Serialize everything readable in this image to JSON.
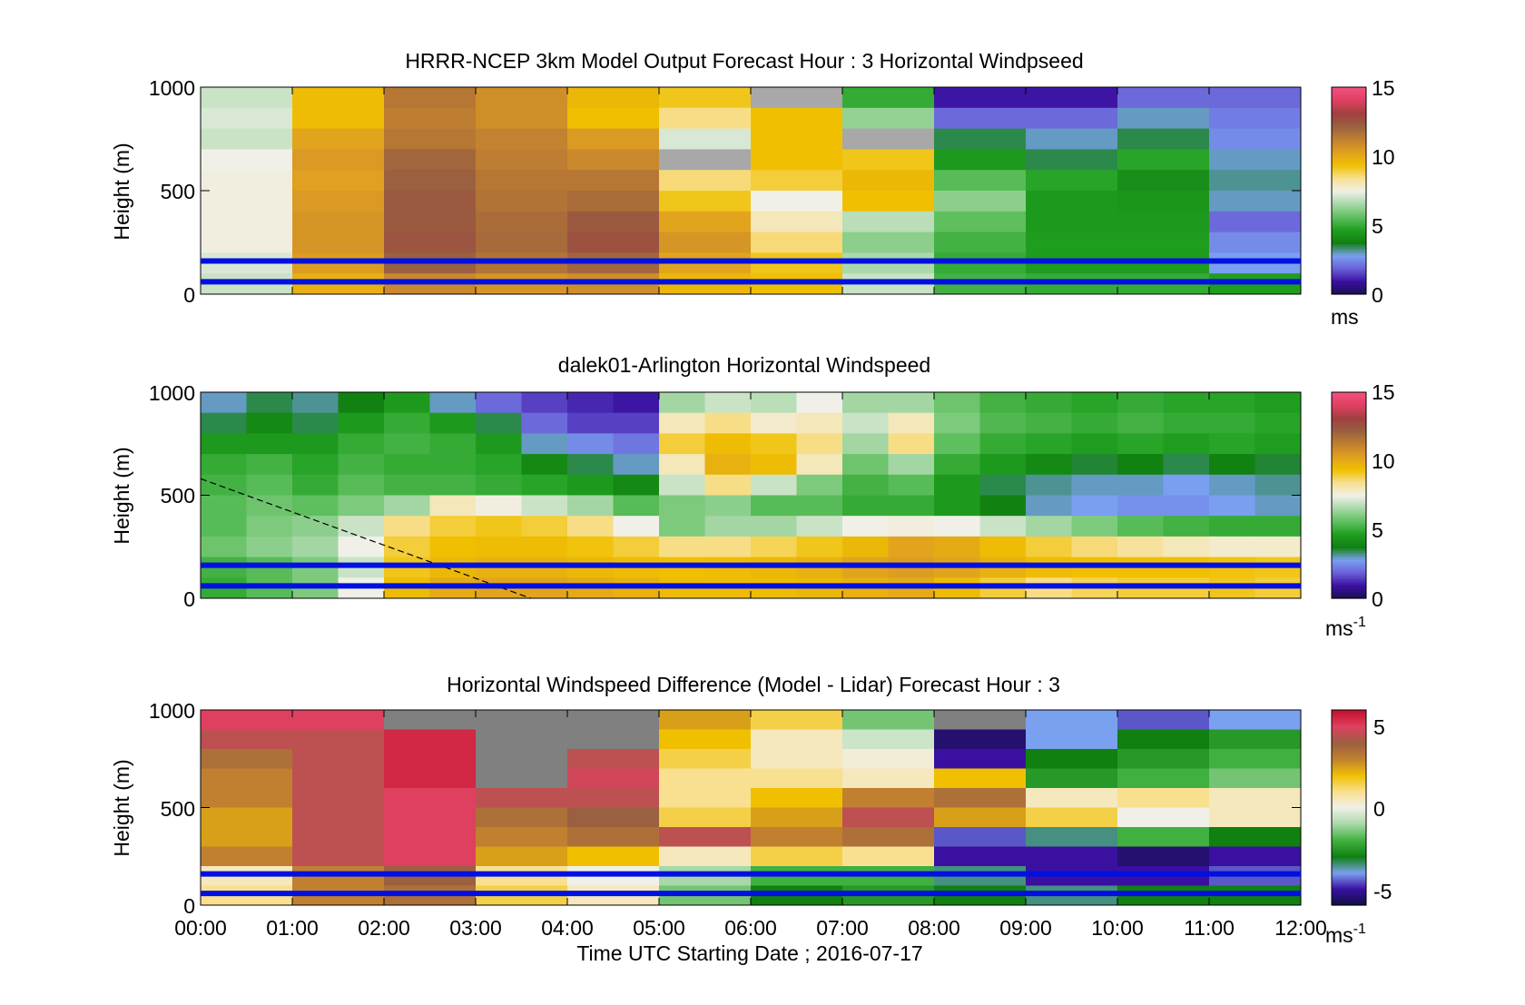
{
  "colormaps": {
    "speed": [
      "#1a1050",
      "#3a10a0",
      "#6a60d8",
      "#7aa0f0",
      "#108010",
      "#20a020",
      "#60c060",
      "#a8d8a8",
      "#f0f0e8",
      "#f8e090",
      "#f0c000",
      "#e0a020",
      "#c08030",
      "#9a6040",
      "#a04040",
      "#e04060",
      "#f05080"
    ],
    "diff": [
      "#101040",
      "#3a10a0",
      "#7aa0f0",
      "#108010",
      "#40b040",
      "#a8d8a8",
      "#f0f0e8",
      "#f8e090",
      "#f0c000",
      "#c08030",
      "#9a6040",
      "#e04060",
      "#c0102a"
    ]
  },
  "reference_lines": {
    "heights": [
      160,
      60
    ],
    "color": "#0010e0"
  },
  "time_ticks": [
    "00:00",
    "01:00",
    "02:00",
    "03:00",
    "04:00",
    "05:00",
    "06:00",
    "07:00",
    "08:00",
    "09:00",
    "10:00",
    "11:00",
    "12:00"
  ],
  "xlabel": "Time UTC  Starting Date ; 2016-07-17",
  "chart_data": [
    {
      "id": "model",
      "type": "heatmap",
      "title": "HRRR-NCEP 3km Model Output   Forecast Hour : 3 Horizontal Windpseed",
      "ylabel": "Height (m)",
      "ylim": [
        0,
        1000
      ],
      "yticks": [
        "0",
        "500",
        "1000"
      ],
      "clim": [
        0,
        15
      ],
      "colormap": "speed",
      "colorbar": {
        "ticks": [
          "0",
          "5",
          "10",
          "15"
        ],
        "label": "ms",
        "label_sup": ""
      },
      "x": [
        0,
        1,
        2,
        3,
        4,
        5,
        6,
        7,
        8,
        9,
        10,
        11
      ],
      "layer_tops": [
        1000,
        900,
        800,
        700,
        600,
        500,
        400,
        300,
        200,
        100
      ],
      "values": [
        [
          7.0,
          9.5,
          11.5,
          10.8,
          9.6,
          9.2,
          0,
          5.0,
          1.0,
          1.0,
          2.0,
          2.0
        ],
        [
          7.2,
          9.5,
          11.3,
          10.8,
          9.4,
          8.5,
          9.4,
          6.3,
          2.0,
          2.0,
          3.0,
          2.3
        ],
        [
          7.0,
          10.2,
          11.5,
          11.2,
          10.5,
          7.2,
          9.4,
          0,
          3.5,
          3.0,
          3.5,
          2.5
        ],
        [
          7.5,
          10.5,
          12.0,
          11.3,
          11.0,
          0,
          9.4,
          9.2,
          4.5,
          3.5,
          4.8,
          3.0
        ],
        [
          7.6,
          10.3,
          12.2,
          11.5,
          11.5,
          8.6,
          9.0,
          9.6,
          5.5,
          4.8,
          4.2,
          3.2
        ],
        [
          7.6,
          10.5,
          12.4,
          11.6,
          11.8,
          9.2,
          7.5,
          9.4,
          6.2,
          4.5,
          4.4,
          3.0
        ],
        [
          7.6,
          10.6,
          12.4,
          11.8,
          12.4,
          10.2,
          8.0,
          6.8,
          5.6,
          4.5,
          4.5,
          2.0
        ],
        [
          7.6,
          10.6,
          12.5,
          11.9,
          12.6,
          10.6,
          8.6,
          6.2,
          5.2,
          4.6,
          4.6,
          2.5
        ],
        [
          7.2,
          10.4,
          12.2,
          11.6,
          12.0,
          10.2,
          9.2,
          6.6,
          5.0,
          4.6,
          4.6,
          2.8
        ],
        [
          7.0,
          9.8,
          11.0,
          10.6,
          10.8,
          9.6,
          9.4,
          7.0,
          5.2,
          5.0,
          5.0,
          4.6
        ]
      ]
    },
    {
      "id": "lidar",
      "type": "heatmap",
      "title": "dalek01-Arlington  Horizontal Windspeed",
      "ylabel": "Height (m)",
      "ylim": [
        0,
        1000
      ],
      "yticks": [
        "0",
        "500",
        "1000"
      ],
      "clim": [
        0,
        15
      ],
      "colormap": "speed",
      "colorbar": {
        "ticks": [
          "0",
          "5",
          "10",
          "15"
        ],
        "label": "ms",
        "label_sup": "-1"
      },
      "x": [
        0,
        0.5,
        1,
        1.5,
        2,
        2.5,
        3,
        3.5,
        4,
        4.5,
        5,
        5.5,
        6,
        6.5,
        7,
        7.5,
        8,
        8.5,
        9,
        9.5,
        10,
        10.5,
        11,
        11.5
      ],
      "layer_tops": [
        1000,
        900,
        800,
        700,
        600,
        500,
        400,
        300,
        200,
        100
      ],
      "values": [
        [
          3.0,
          3.5,
          3.2,
          3.8,
          4.5,
          3.0,
          2.0,
          1.5,
          1.2,
          1.0,
          6.5,
          7.0,
          6.8,
          7.5,
          6.5,
          6.5,
          5.8,
          5.2,
          5.0,
          4.8,
          5.0,
          4.8,
          4.8,
          4.6
        ],
        [
          3.5,
          4.0,
          3.5,
          4.5,
          5.0,
          4.5,
          3.5,
          2.0,
          1.5,
          1.5,
          8.0,
          8.5,
          7.8,
          8.0,
          7.0,
          8.0,
          6.0,
          5.4,
          5.2,
          5.0,
          5.2,
          5.0,
          5.0,
          4.8
        ],
        [
          4.5,
          4.5,
          4.5,
          5.0,
          5.2,
          5.0,
          4.5,
          3.0,
          2.5,
          2.2,
          9.0,
          9.5,
          9.2,
          8.5,
          6.5,
          8.5,
          5.6,
          5.0,
          4.8,
          4.6,
          4.8,
          4.6,
          4.8,
          4.6
        ],
        [
          5.0,
          5.2,
          4.8,
          5.2,
          5.0,
          5.0,
          4.8,
          4.0,
          3.5,
          3.0,
          8.0,
          9.8,
          9.5,
          8.0,
          5.8,
          6.5,
          5.0,
          4.5,
          4.0,
          3.6,
          3.8,
          3.5,
          3.8,
          3.6
        ],
        [
          5.2,
          5.5,
          5.0,
          5.5,
          5.2,
          5.2,
          5.0,
          4.8,
          4.5,
          4.0,
          7.0,
          8.5,
          7.0,
          6.0,
          5.2,
          5.5,
          4.5,
          3.5,
          3.2,
          3.0,
          3.0,
          2.8,
          3.0,
          3.2
        ],
        [
          5.5,
          5.8,
          5.6,
          6.0,
          6.5,
          8.0,
          7.6,
          7.0,
          6.5,
          5.5,
          6.0,
          6.2,
          5.5,
          5.5,
          5.0,
          5.0,
          4.5,
          3.8,
          3.0,
          2.8,
          2.6,
          2.6,
          2.8,
          3.0
        ],
        [
          5.5,
          6.0,
          6.2,
          7.0,
          8.5,
          9.0,
          9.2,
          9.0,
          8.5,
          7.5,
          6.0,
          6.5,
          6.5,
          7.0,
          7.5,
          7.6,
          7.5,
          7.0,
          6.5,
          6.0,
          5.5,
          5.2,
          5.0,
          5.0
        ],
        [
          5.8,
          6.2,
          6.5,
          7.5,
          9.0,
          9.4,
          9.5,
          9.5,
          9.3,
          9.0,
          8.5,
          8.5,
          8.8,
          9.2,
          9.6,
          10.2,
          10.0,
          9.5,
          9.0,
          8.6,
          8.3,
          8.0,
          7.8,
          7.8
        ],
        [
          5.2,
          5.5,
          6.0,
          7.0,
          9.2,
          9.6,
          9.8,
          9.8,
          9.6,
          9.5,
          9.4,
          9.5,
          9.6,
          9.8,
          10.2,
          10.4,
          10.2,
          9.8,
          9.5,
          9.4,
          9.4,
          9.4,
          9.3,
          9.2
        ],
        [
          5.0,
          5.5,
          6.0,
          7.5,
          9.5,
          10.0,
          10.2,
          10.2,
          10.0,
          9.8,
          9.5,
          9.5,
          9.5,
          9.6,
          9.8,
          10.0,
          9.5,
          9.0,
          8.5,
          8.8,
          9.0,
          9.0,
          9.2,
          9.0
        ]
      ],
      "annotation_line": {
        "from": [
          0,
          580
        ],
        "to": [
          3.6,
          0
        ],
        "style": "dashed"
      }
    },
    {
      "id": "diff",
      "type": "heatmap",
      "title": "Horizontal Windspeed Difference (Model - Lidar) Forecast Hour : 3",
      "ylabel": "Height (m)",
      "ylim": [
        0,
        1000
      ],
      "yticks": [
        "0",
        "500",
        "1000"
      ],
      "clim": [
        -6,
        6
      ],
      "colormap": "diff",
      "colorbar": {
        "ticks": [
          "-5",
          "0",
          "5"
        ],
        "label": "ms",
        "label_sup": "-1"
      },
      "x": [
        0,
        1,
        2,
        3,
        4,
        5,
        6,
        7,
        8,
        9,
        10,
        11
      ],
      "layer_tops": [
        1000,
        900,
        800,
        700,
        600,
        500,
        400,
        300,
        200,
        100
      ],
      "values": [
        [
          5.0,
          5.0,
          null,
          null,
          null,
          2.5,
          1.5,
          -1.5,
          null,
          -4.0,
          -4.5,
          -4.0
        ],
        [
          4.5,
          4.5,
          5.5,
          null,
          null,
          2.0,
          0.5,
          -0.5,
          -5.5,
          -4.0,
          -3.0,
          -2.5
        ],
        [
          3.5,
          4.5,
          5.5,
          null,
          4.5,
          1.5,
          0.5,
          0.2,
          -5.0,
          -3.0,
          -2.5,
          -2.0
        ],
        [
          3.0,
          4.5,
          5.5,
          null,
          4.8,
          1.0,
          1.0,
          0.5,
          2.0,
          -2.5,
          -2.0,
          -1.5
        ],
        [
          3.0,
          4.5,
          5.0,
          4.5,
          4.5,
          1.0,
          2.0,
          3.0,
          3.5,
          0.5,
          1.0,
          0.5
        ],
        [
          2.5,
          4.5,
          5.0,
          3.5,
          4.0,
          1.5,
          2.5,
          4.5,
          2.5,
          1.5,
          0.0,
          0.5
        ],
        [
          2.5,
          4.5,
          5.0,
          3.0,
          3.5,
          4.5,
          3.0,
          3.5,
          -4.5,
          -3.5,
          -2.0,
          -3.0
        ],
        [
          3.0,
          4.5,
          5.0,
          2.5,
          2.0,
          0.5,
          1.5,
          1.0,
          -5.0,
          -5.0,
          -5.5,
          -5.0
        ],
        [
          0.5,
          3.0,
          4.0,
          1.0,
          0.0,
          -1.0,
          -2.0,
          -2.0,
          -3.5,
          -5.0,
          -5.0,
          -4.5
        ],
        [
          1.0,
          3.0,
          3.5,
          1.5,
          0.5,
          -1.5,
          -3.0,
          -2.5,
          -3.0,
          -3.5,
          -3.0,
          -3.0
        ]
      ]
    }
  ]
}
